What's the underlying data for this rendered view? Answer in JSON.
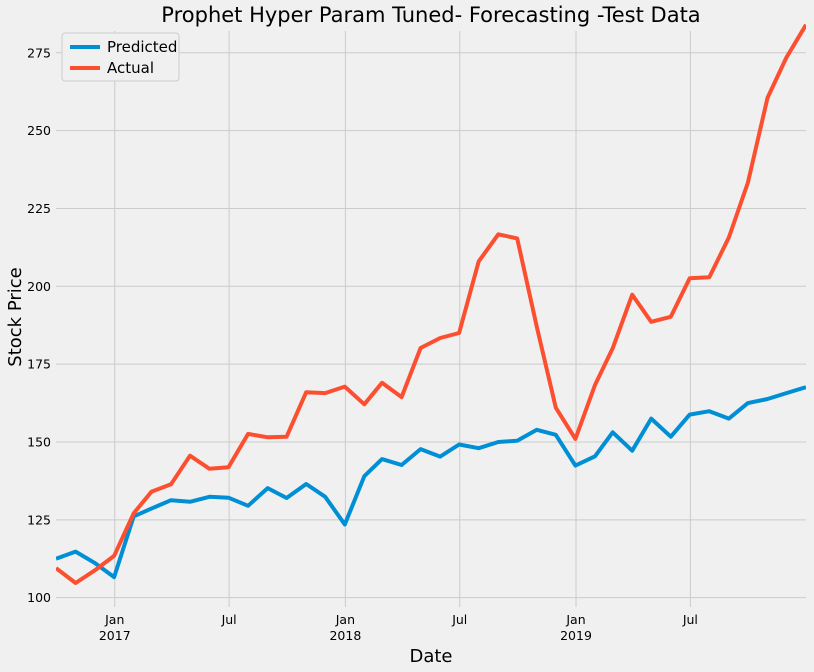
{
  "chart_data": {
    "type": "line",
    "title": "Prophet Hyper Param Tuned- Forecasting -Test Data",
    "xlabel": "Date",
    "ylabel": "Stock Price",
    "xlim": [
      "2016-09-30",
      "2019-12-31"
    ],
    "ylim": [
      97,
      282
    ],
    "yticks": [
      100,
      125,
      150,
      175,
      200,
      225,
      250,
      275
    ],
    "xticks": [
      {
        "date": "2017-01-01",
        "label": "Jan",
        "sublabel": "2017"
      },
      {
        "date": "2017-07-01",
        "label": "Jul",
        "sublabel": ""
      },
      {
        "date": "2018-01-01",
        "label": "Jan",
        "sublabel": "2018"
      },
      {
        "date": "2018-07-01",
        "label": "Jul",
        "sublabel": ""
      },
      {
        "date": "2019-01-01",
        "label": "Jan",
        "sublabel": "2019"
      },
      {
        "date": "2019-07-01",
        "label": "Jul",
        "sublabel": ""
      }
    ],
    "grid": true,
    "legend_position": "top-left",
    "x": [
      "2016-09-30",
      "2016-10-31",
      "2016-11-30",
      "2016-12-31",
      "2017-01-31",
      "2017-02-28",
      "2017-03-31",
      "2017-04-30",
      "2017-05-31",
      "2017-06-30",
      "2017-07-31",
      "2017-08-31",
      "2017-09-30",
      "2017-10-31",
      "2017-11-30",
      "2017-12-31",
      "2018-01-31",
      "2018-02-28",
      "2018-03-31",
      "2018-04-30",
      "2018-05-31",
      "2018-06-30",
      "2018-07-31",
      "2018-08-31",
      "2018-09-30",
      "2018-10-31",
      "2018-11-30",
      "2018-12-31",
      "2019-01-31",
      "2019-02-28",
      "2019-03-31",
      "2019-04-30",
      "2019-05-31",
      "2019-06-30",
      "2019-07-31",
      "2019-08-31",
      "2019-09-30",
      "2019-10-31",
      "2019-11-30",
      "2019-12-31"
    ],
    "series": [
      {
        "name": "Predicted",
        "color": "#008fd5",
        "values": [
          112.5,
          114.8,
          111.2,
          106.6,
          126.1,
          128.6,
          131.3,
          130.8,
          132.4,
          132.1,
          129.5,
          135.2,
          132.0,
          136.5,
          132.4,
          123.5,
          139.0,
          144.5,
          142.6,
          147.7,
          145.3,
          149.2,
          148.0,
          150.0,
          150.4,
          153.9,
          152.3,
          142.4,
          145.4,
          153.1,
          147.2,
          157.5,
          151.7,
          158.8,
          159.9,
          157.5,
          162.5,
          163.8,
          165.7,
          167.6
        ]
      },
      {
        "name": "Actual",
        "color": "#fc4f30",
        "values": [
          109.5,
          104.7,
          108.7,
          113.4,
          127.1,
          134.0,
          136.4,
          145.6,
          141.4,
          141.9,
          152.6,
          151.5,
          151.7,
          166.0,
          165.7,
          167.8,
          162.1,
          169.0,
          164.4,
          180.2,
          183.4,
          185.0,
          208.0,
          216.7,
          215.4,
          187.0,
          161.0,
          151.0,
          168.3,
          180.1,
          197.3,
          188.6,
          190.2,
          202.6,
          202.9,
          215.7,
          233.3,
          260.5,
          273.5,
          284.0
        ]
      }
    ]
  }
}
